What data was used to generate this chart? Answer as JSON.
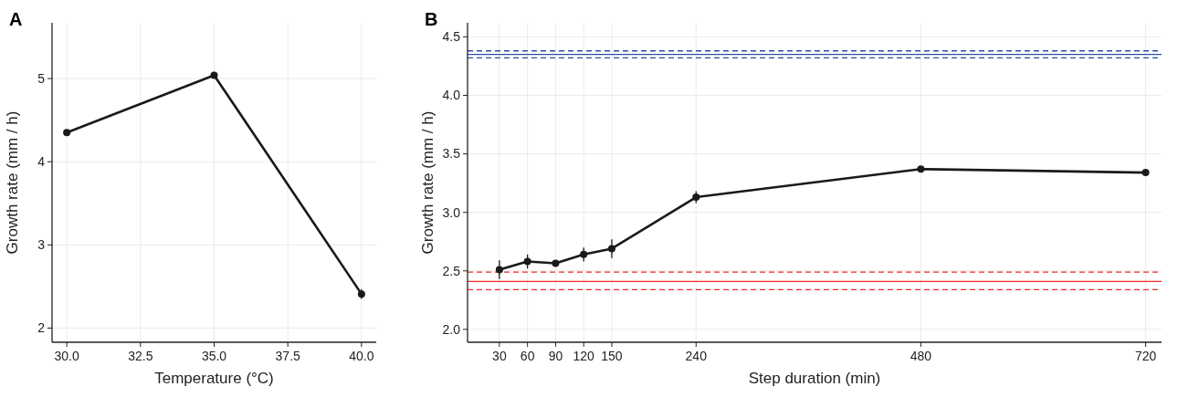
{
  "chart_data": [
    {
      "type": "line",
      "title": "A",
      "xlabel": "Temperature (°C)",
      "ylabel": "Growth rate (mm / h)",
      "x": [
        30,
        35,
        40
      ],
      "series": [
        {
          "color": "#1a1a1a",
          "values": [
            4.35,
            5.04,
            2.41
          ],
          "errors": [
            0.02,
            0.04,
            0.06
          ]
        }
      ],
      "xlim": [
        29.5,
        40.5
      ],
      "xticks": [
        {
          "value": 30,
          "label": "30.0"
        },
        32.5,
        {
          "value": 35,
          "label": "35.0"
        },
        37.5,
        {
          "value": 40,
          "label": "40.0"
        }
      ],
      "ylim": [
        1.83,
        5.67
      ],
      "yticks": [
        2,
        3,
        4,
        5
      ],
      "grid": true,
      "marker": "circle",
      "line_style": "solid"
    },
    {
      "type": "line",
      "title": "B",
      "xlabel": "Step duration (min)",
      "ylabel": "Growth rate (mm / h)",
      "x": [
        30,
        60,
        90,
        120,
        150,
        240,
        480,
        720
      ],
      "series": [
        {
          "color": "#1a1a1a",
          "values": [
            2.51,
            2.58,
            2.565,
            2.64,
            2.69,
            3.13,
            3.37,
            3.34
          ],
          "errors": [
            0.08,
            0.06,
            0.02,
            0.06,
            0.08,
            0.05,
            0.02,
            0.02
          ]
        }
      ],
      "xlim": [
        -4,
        737
      ],
      "xticks": [
        30,
        60,
        90,
        120,
        150,
        240,
        480,
        720
      ],
      "ylim": [
        1.89,
        4.62
      ],
      "yticks": [
        {
          "value": 2,
          "label": "2.0"
        },
        2.5,
        {
          "value": 3,
          "label": "3.0"
        },
        3.5,
        {
          "value": 4,
          "label": "4.0"
        },
        4.5
      ],
      "ref_lines": [
        {
          "axis": "y",
          "value": 4.35,
          "color": "#2a4fa8",
          "line_style": "solid"
        },
        {
          "axis": "y",
          "value": 4.38,
          "color": "#2a4fa8",
          "line_style": "dashed"
        },
        {
          "axis": "y",
          "value": 4.32,
          "color": "#2a4fa8",
          "line_style": "dashed"
        },
        {
          "axis": "y",
          "value": 2.41,
          "color": "#f02828",
          "line_style": "solid"
        },
        {
          "axis": "y",
          "value": 2.49,
          "color": "#f02828",
          "line_style": "dashed"
        },
        {
          "axis": "y",
          "value": 2.34,
          "color": "#f02828",
          "line_style": "dashed"
        }
      ],
      "grid": true,
      "marker": "circle",
      "line_style": "solid"
    }
  ]
}
